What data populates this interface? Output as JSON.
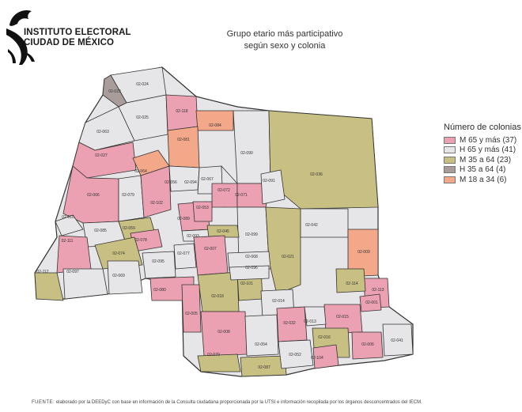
{
  "header": {
    "logo_line1": "INSTITUTO ELECTORAL",
    "logo_line2": "CIUDAD DE MÉXICO",
    "title_line1": "Grupo etario más participativo",
    "title_line2": "según sexo y colonia"
  },
  "legend": {
    "title": "Número de colonias",
    "items": [
      {
        "label": "M 65 y más (37)",
        "color": "#eba1b1"
      },
      {
        "label": "H 65 y más (41)",
        "color": "#e6e6e8"
      },
      {
        "label": "M 35 a 64 (23)",
        "color": "#c8bf82"
      },
      {
        "label": "H 35 a 64 (4)",
        "color": "#a89d9b"
      },
      {
        "label": "M 18 a 34 (6)",
        "color": "#f3a889"
      }
    ]
  },
  "colors": {
    "M65": "#eba1b1",
    "H65": "#e6e6e8",
    "M35": "#c8bf82",
    "H35": "#a89d9b",
    "M18": "#f3a889"
  },
  "map": {
    "colonias": [
      {
        "id": "02-024",
        "cat": "H65"
      },
      {
        "id": "02-023",
        "cat": "H35"
      },
      {
        "id": "02-025",
        "cat": "H65"
      },
      {
        "id": "02-118",
        "cat": "M65"
      },
      {
        "id": "02-084",
        "cat": "M18"
      },
      {
        "id": "02-081",
        "cat": "M18"
      },
      {
        "id": "02-090",
        "cat": "H65"
      },
      {
        "id": "02-036",
        "cat": "M35"
      },
      {
        "id": "02-063",
        "cat": "H65"
      },
      {
        "id": "02-027",
        "cat": "M65"
      },
      {
        "id": "02-066",
        "cat": "M65"
      },
      {
        "id": "02-079",
        "cat": "H65"
      },
      {
        "id": "02-102",
        "cat": "M65"
      },
      {
        "id": "02-056",
        "cat": "H65"
      },
      {
        "id": "02-064",
        "cat": "M18"
      },
      {
        "id": "02-094",
        "cat": "H65"
      },
      {
        "id": "02-067",
        "cat": "H65"
      },
      {
        "id": "02-072",
        "cat": "M65"
      },
      {
        "id": "02-071",
        "cat": "M65"
      },
      {
        "id": "02-091",
        "cat": "H65"
      },
      {
        "id": "02-010",
        "cat": "H65"
      },
      {
        "id": "02-085",
        "cat": "H65"
      },
      {
        "id": "02-059",
        "cat": "M35"
      },
      {
        "id": "02-078",
        "cat": "M65"
      },
      {
        "id": "02-089",
        "cat": "M65"
      },
      {
        "id": "02-111",
        "cat": "M65"
      },
      {
        "id": "02-074",
        "cat": "M35"
      },
      {
        "id": "02-093",
        "cat": "H65"
      },
      {
        "id": "02-099",
        "cat": "H65"
      },
      {
        "id": "02-045",
        "cat": "M35"
      },
      {
        "id": "02-021",
        "cat": "M35"
      },
      {
        "id": "02-042",
        "cat": "H65"
      },
      {
        "id": "02-053",
        "cat": "M65"
      },
      {
        "id": "02-009",
        "cat": "M18"
      },
      {
        "id": "02-112",
        "cat": "M35"
      },
      {
        "id": "02-097",
        "cat": "H65"
      },
      {
        "id": "02-069",
        "cat": "H65"
      },
      {
        "id": "02-095",
        "cat": "H65"
      },
      {
        "id": "02-077",
        "cat": "H65"
      },
      {
        "id": "02-007",
        "cat": "M65"
      },
      {
        "id": "02-068",
        "cat": "H65"
      },
      {
        "id": "02-080",
        "cat": "M65"
      },
      {
        "id": "02-018",
        "cat": "M35"
      },
      {
        "id": "02-101",
        "cat": "M35"
      },
      {
        "id": "02-096",
        "cat": "H65"
      },
      {
        "id": "02-014",
        "cat": "H65"
      },
      {
        "id": "02-113",
        "cat": "M65"
      },
      {
        "id": "02-114",
        "cat": "M35"
      },
      {
        "id": "02-005",
        "cat": "M65"
      },
      {
        "id": "02-008",
        "cat": "M65"
      },
      {
        "id": "02-054",
        "cat": "H65"
      },
      {
        "id": "02-032",
        "cat": "M65"
      },
      {
        "id": "02-015",
        "cat": "M65"
      },
      {
        "id": "02-016",
        "cat": "M35"
      },
      {
        "id": "02-006",
        "cat": "M65"
      },
      {
        "id": "02-041",
        "cat": "H65"
      },
      {
        "id": "02-070",
        "cat": "M35"
      },
      {
        "id": "02-087",
        "cat": "M35"
      },
      {
        "id": "02-052",
        "cat": "H65"
      },
      {
        "id": "02-104",
        "cat": "M65"
      },
      {
        "id": "02-001",
        "cat": "M65"
      },
      {
        "id": "02-013",
        "cat": "H65"
      }
    ]
  },
  "footer": {
    "source_label": "Fuente:",
    "source_text": "elaborado por la DEEDyC con base en información de la Consulta ciudadana proporcionada por la UTSI e información recopilada por los órganos desconcentrados del IECM."
  }
}
